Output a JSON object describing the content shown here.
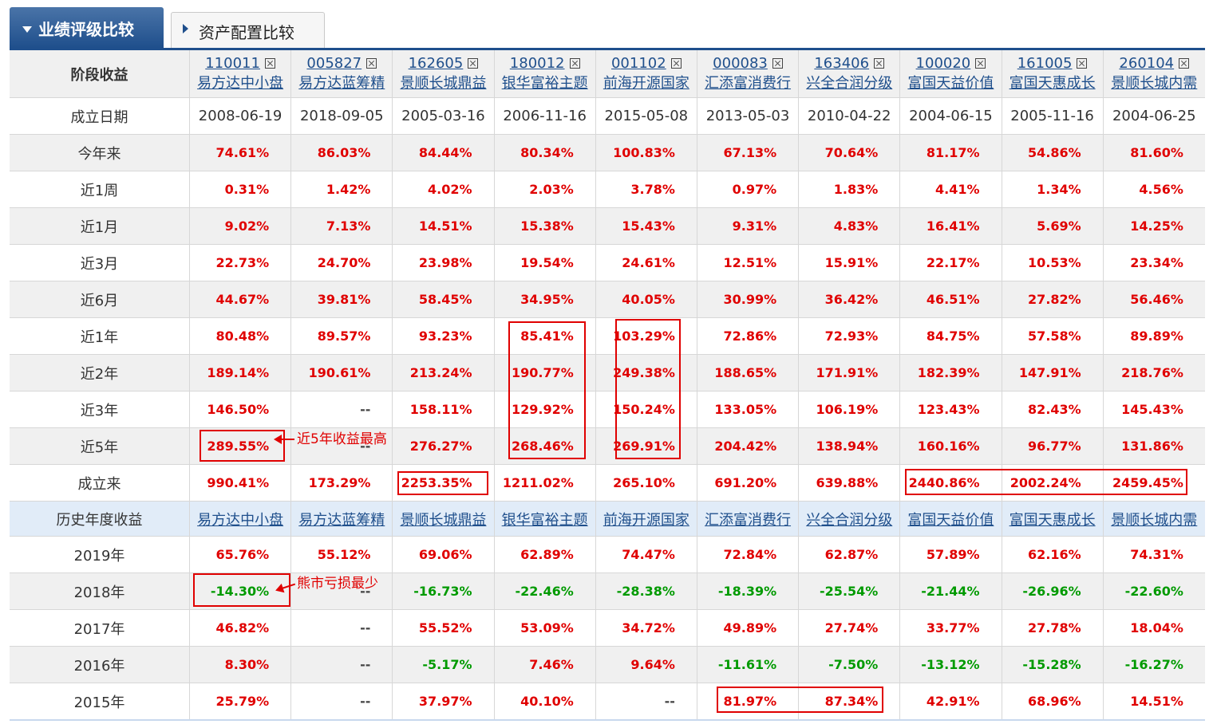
{
  "tabs": {
    "active": "业绩评级比较",
    "inactive": "资产配置比较"
  },
  "stage_header": "阶段收益",
  "funds": [
    {
      "code": "110011",
      "name": "易方达中小盘"
    },
    {
      "code": "005827",
      "name": "易方达蓝筹精"
    },
    {
      "code": "162605",
      "name": "景顺长城鼎益"
    },
    {
      "code": "180012",
      "name": "银华富裕主题"
    },
    {
      "code": "001102",
      "name": "前海开源国家"
    },
    {
      "code": "000083",
      "name": "汇添富消费行"
    },
    {
      "code": "163406",
      "name": "兴全合润分级"
    },
    {
      "code": "100020",
      "name": "富国天益价值"
    },
    {
      "code": "161005",
      "name": "富国天惠成长"
    },
    {
      "code": "260104",
      "name": "景顺长城内需"
    }
  ],
  "inception_row": {
    "label": "成立日期",
    "values": [
      "2008-06-19",
      "2018-09-05",
      "2005-03-16",
      "2006-11-16",
      "2015-05-08",
      "2013-05-03",
      "2010-04-22",
      "2004-06-15",
      "2005-11-16",
      "2004-06-25"
    ]
  },
  "stage_rows": [
    {
      "label": "今年来",
      "values": [
        "74.61%",
        "86.03%",
        "84.44%",
        "80.34%",
        "100.83%",
        "67.13%",
        "70.64%",
        "81.17%",
        "54.86%",
        "81.60%"
      ]
    },
    {
      "label": "近1周",
      "values": [
        "0.31%",
        "1.42%",
        "4.02%",
        "2.03%",
        "3.78%",
        "0.97%",
        "1.83%",
        "4.41%",
        "1.34%",
        "4.56%"
      ]
    },
    {
      "label": "近1月",
      "values": [
        "9.02%",
        "7.13%",
        "14.51%",
        "15.38%",
        "15.43%",
        "9.31%",
        "4.83%",
        "16.41%",
        "5.69%",
        "14.25%"
      ]
    },
    {
      "label": "近3月",
      "values": [
        "22.73%",
        "24.70%",
        "23.98%",
        "19.54%",
        "24.61%",
        "12.51%",
        "15.91%",
        "22.17%",
        "10.53%",
        "23.34%"
      ]
    },
    {
      "label": "近6月",
      "values": [
        "44.67%",
        "39.81%",
        "58.45%",
        "34.95%",
        "40.05%",
        "30.99%",
        "36.42%",
        "46.51%",
        "27.82%",
        "56.46%"
      ]
    },
    {
      "label": "近1年",
      "values": [
        "80.48%",
        "89.57%",
        "93.23%",
        "85.41%",
        "103.29%",
        "72.86%",
        "72.93%",
        "84.75%",
        "57.58%",
        "89.89%"
      ]
    },
    {
      "label": "近2年",
      "values": [
        "189.14%",
        "190.61%",
        "213.24%",
        "190.77%",
        "249.38%",
        "188.65%",
        "171.91%",
        "182.39%",
        "147.91%",
        "218.76%"
      ]
    },
    {
      "label": "近3年",
      "values": [
        "146.50%",
        "--",
        "158.11%",
        "129.92%",
        "150.24%",
        "133.05%",
        "106.19%",
        "123.43%",
        "82.43%",
        "145.43%"
      ]
    },
    {
      "label": "近5年",
      "values": [
        "289.55%",
        "--",
        "276.27%",
        "268.46%",
        "269.91%",
        "204.42%",
        "138.94%",
        "160.16%",
        "96.77%",
        "131.86%"
      ]
    },
    {
      "label": "成立来",
      "values": [
        "990.41%",
        "173.29%",
        "2253.35%",
        "1211.02%",
        "265.10%",
        "691.20%",
        "639.88%",
        "2440.86%",
        "2002.24%",
        "2459.45%"
      ]
    }
  ],
  "annual_header": "历史年度收益",
  "annual_rows": [
    {
      "label": "2019年",
      "values": [
        "65.76%",
        "55.12%",
        "69.06%",
        "62.89%",
        "74.47%",
        "72.84%",
        "62.87%",
        "57.89%",
        "62.16%",
        "74.31%"
      ]
    },
    {
      "label": "2018年",
      "values": [
        "-14.30%",
        "--",
        "-16.73%",
        "-22.46%",
        "-28.38%",
        "-18.39%",
        "-25.54%",
        "-21.44%",
        "-26.96%",
        "-22.60%"
      ]
    },
    {
      "label": "2017年",
      "values": [
        "46.82%",
        "--",
        "55.52%",
        "53.09%",
        "34.72%",
        "49.89%",
        "27.74%",
        "33.77%",
        "27.78%",
        "18.04%"
      ]
    },
    {
      "label": "2016年",
      "values": [
        "8.30%",
        "--",
        "-5.17%",
        "7.46%",
        "9.64%",
        "-11.61%",
        "-7.50%",
        "-13.12%",
        "-15.28%",
        "-16.27%"
      ]
    },
    {
      "label": "2015年",
      "values": [
        "25.79%",
        "--",
        "37.97%",
        "40.10%",
        "--",
        "81.97%",
        "87.34%",
        "42.91%",
        "68.96%",
        "14.51%"
      ]
    }
  ],
  "annotations": {
    "best_5y": "近5年收益最高",
    "least_loss_bear": "熊市亏损最少"
  },
  "colors": {
    "positive": "#e00000",
    "negative": "#009a00",
    "accent": "#1f4f8c"
  }
}
